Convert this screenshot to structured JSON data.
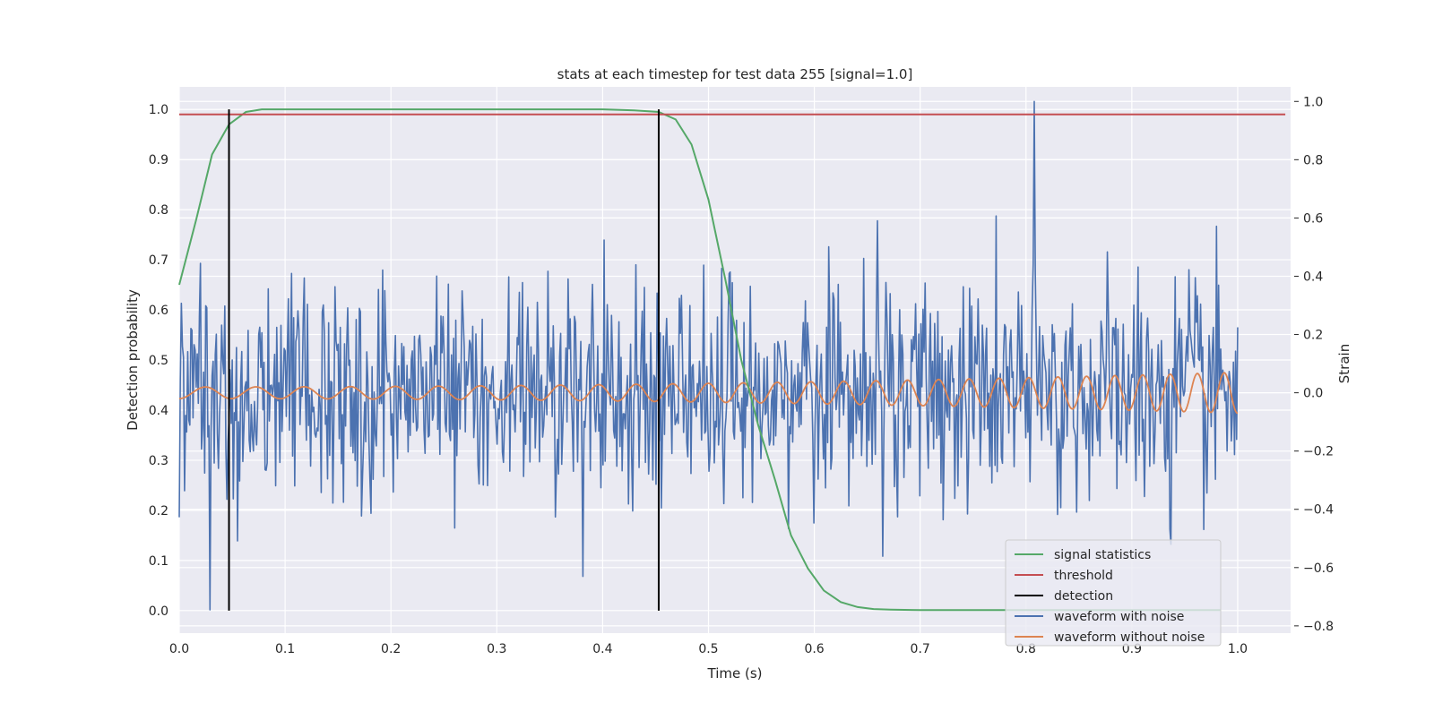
{
  "chart_data": {
    "type": "line",
    "title": "stats at each timestep for test data 255 [signal=1.0]",
    "xlabel": "Time (s)",
    "ylabel_left": "Detection probability",
    "ylabel_right": "Strain",
    "xlim": [
      0.0,
      1.05
    ],
    "ylim_left": [
      -0.045,
      1.045
    ],
    "ylim_right": [
      -0.825,
      1.05
    ],
    "x_ticks": [
      "0.0",
      "0.1",
      "0.2",
      "0.3",
      "0.4",
      "0.5",
      "0.6",
      "0.7",
      "0.8",
      "0.9",
      "1.0"
    ],
    "y_ticks_left": [
      "0.0",
      "0.1",
      "0.2",
      "0.3",
      "0.4",
      "0.5",
      "0.6",
      "0.7",
      "0.8",
      "0.9",
      "1.0"
    ],
    "y_ticks_right": [
      "−0.8",
      "−0.6",
      "−0.4",
      "−0.2",
      "0.0",
      "0.2",
      "0.4",
      "0.6",
      "0.8",
      "1.0"
    ],
    "grid": true,
    "legend_position": "bottom-right",
    "colors": {
      "signal_statistics": "#55a868",
      "threshold": "#c44e52",
      "detection": "#000000",
      "waveform_with_noise": "#4c72b0",
      "waveform_without_noise": "#dd8452",
      "plot_background": "#eaeaf2",
      "grid": "#ffffff"
    },
    "series": [
      {
        "name": "signal statistics",
        "axis": "left",
        "x": [
          0.0,
          0.016,
          0.031,
          0.047,
          0.063,
          0.078,
          0.094,
          0.2,
          0.3,
          0.4,
          0.43,
          0.453,
          0.469,
          0.484,
          0.5,
          0.516,
          0.531,
          0.547,
          0.563,
          0.578,
          0.594,
          0.609,
          0.625,
          0.641,
          0.656,
          0.672,
          0.7,
          0.8,
          0.9,
          0.984
        ],
        "y": [
          0.65,
          0.78,
          0.91,
          0.97,
          0.995,
          1.0,
          1.0,
          1.0,
          1.0,
          1.0,
          0.998,
          0.995,
          0.98,
          0.93,
          0.82,
          0.66,
          0.5,
          0.37,
          0.26,
          0.15,
          0.084,
          0.04,
          0.017,
          0.007,
          0.003,
          0.002,
          0.001,
          0.001,
          0.001,
          0.001
        ]
      },
      {
        "name": "threshold",
        "axis": "left",
        "x": [
          0.0,
          1.045
        ],
        "y": [
          0.99,
          0.99
        ]
      },
      {
        "name": "detection",
        "axis": "left",
        "segments": [
          {
            "x": 0.047,
            "y": [
              0.0,
              1.0
            ]
          },
          {
            "x": 0.453,
            "y": [
              0.0,
              1.0
            ]
          }
        ]
      },
      {
        "name": "waveform with noise",
        "axis": "right",
        "x_range": [
          0.0,
          1.0
        ],
        "n_points": 1000,
        "mean": 0.0,
        "std": 0.2,
        "range": [
          -0.745,
          1.0
        ],
        "notable_points": [
          [
            0.029,
            -0.745
          ],
          [
            0.381,
            -0.63
          ],
          [
            0.808,
            1.0
          ],
          [
            0.937,
            -0.52
          ]
        ]
      },
      {
        "name": "waveform without noise",
        "axis": "right",
        "x_range": [
          0.0,
          1.0
        ],
        "amplitude_start": 0.02,
        "amplitude_end": 0.07,
        "frequency_start_hz": 20,
        "frequency_end_hz": 40
      }
    ]
  }
}
